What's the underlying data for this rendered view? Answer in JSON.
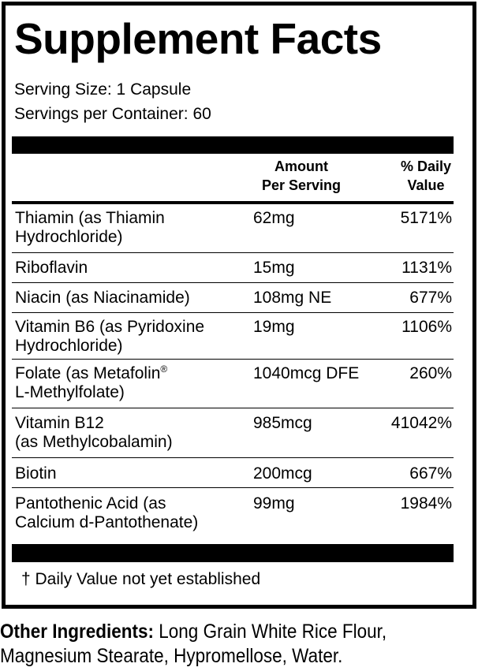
{
  "title": "Supplement Facts",
  "serving_size": "Serving Size: 1 Capsule",
  "servings_per_container": "Servings per Container: 60",
  "header": {
    "amount": "Amount\nPer Serving",
    "dv": "% Daily\nValue"
  },
  "rows": [
    {
      "name": "Thiamin (as Thiamin\nHydrochloride)",
      "amount": "62mg",
      "dv": "5171%"
    },
    {
      "name": "Riboflavin",
      "amount": "15mg",
      "dv": "1131%"
    },
    {
      "name": "Niacin (as Niacinamide)",
      "amount": "108mg NE",
      "dv": "677%"
    },
    {
      "name": "Vitamin B6 (as Pyridoxine\nHydrochloride)",
      "amount": "19mg",
      "dv": "1106%"
    },
    {
      "name": "Folate (as Metafolin",
      "name_sup": "®",
      "name_line2": "L-Methylfolate)",
      "amount": "1040mcg DFE",
      "dv": "260%"
    },
    {
      "name": "Vitamin B12\n(as Methylcobalamin)",
      "amount": "985mcg",
      "dv": "41042%"
    },
    {
      "name": "Biotin",
      "amount": "200mcg",
      "dv": "667%"
    },
    {
      "name": "Pantothenic Acid (as\nCalcium d-Pantothenate)",
      "amount": "99mg",
      "dv": "1984%"
    }
  ],
  "footnote": "† Daily Value not yet established",
  "other_ingredients": {
    "label": "Other Ingredients:",
    "text": " Long Grain White Rice Flour,\nMagnesium Stearate, Hypromellose, Water."
  }
}
